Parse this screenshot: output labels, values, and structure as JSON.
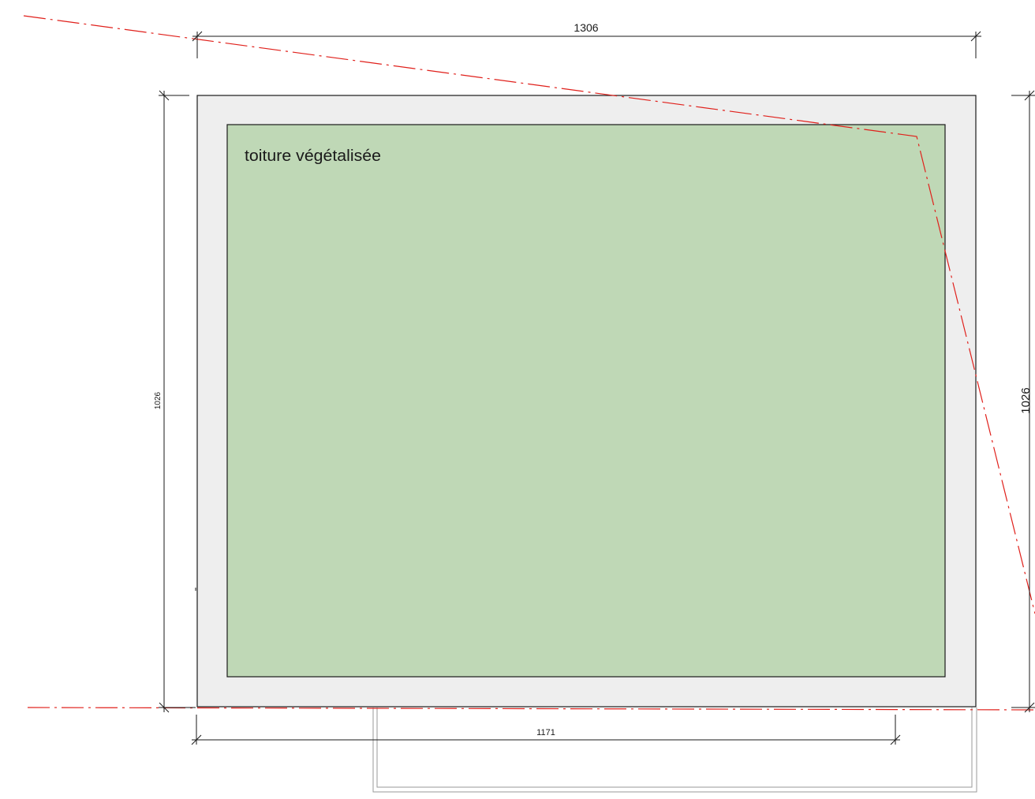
{
  "drawing": {
    "zone": {
      "label": "toiture  végétalisée",
      "fill_color": "#bfd8b6"
    },
    "slab_color": "#eeeeee",
    "line_color": "#1a1a1a",
    "property_line_color": "#e0201b",
    "dimensions": {
      "top": "1306",
      "bottom": "1171",
      "left": "1026",
      "right": "1026"
    }
  }
}
